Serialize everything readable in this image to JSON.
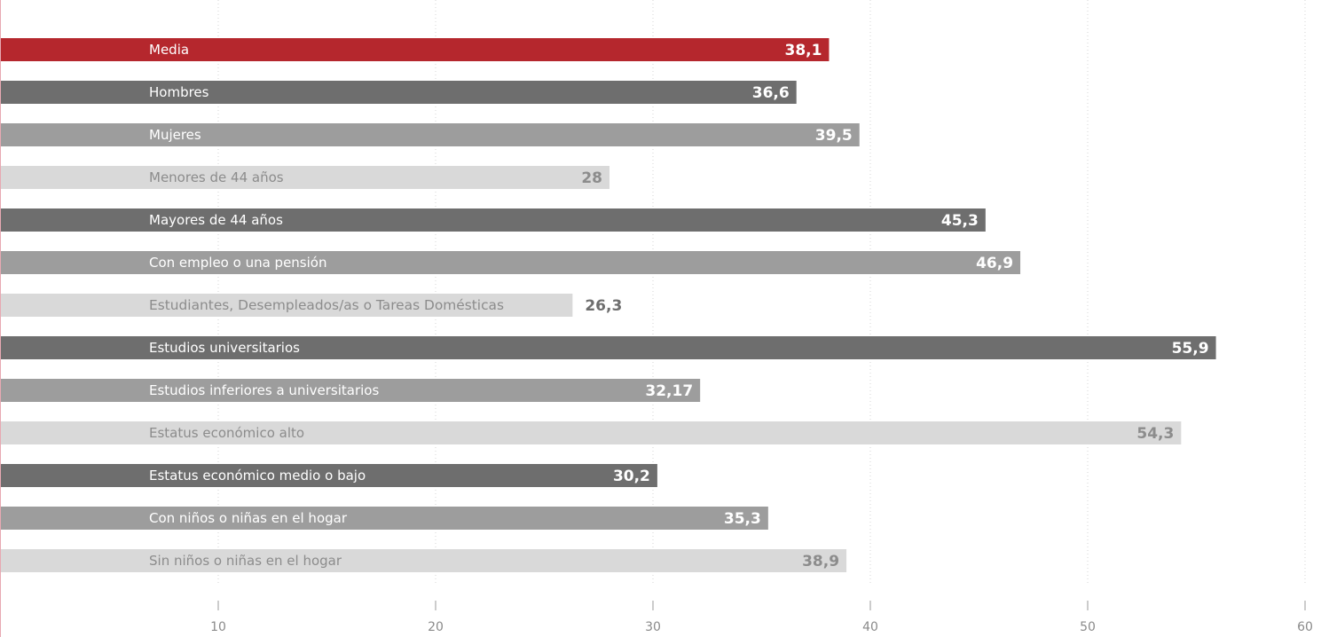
{
  "chart_data": {
    "type": "bar",
    "orientation": "horizontal",
    "categories": [
      "Media",
      "Hombres",
      "Mujeres",
      "Menores de 44 años",
      "Mayores de 44 años",
      "Con empleo o una pensión",
      "Estudiantes, Desempleados/as o Tareas Domésticas",
      "Estudios universitarios",
      "Estudios inferiores a universitarios",
      "Estatus económico alto",
      "Estatus económico medio o bajo",
      "Con niños o niñas en el hogar",
      "Sin niños o niñas en el hogar"
    ],
    "values": [
      38.1,
      36.6,
      39.5,
      28,
      45.3,
      46.9,
      26.3,
      55.9,
      32.17,
      54.3,
      30.2,
      35.3,
      38.9
    ],
    "value_labels": [
      "38,1",
      "36,6",
      "39,5",
      "28",
      "45,3",
      "46,9",
      "26,3",
      "55,9",
      "32,17",
      "54,3",
      "30,2",
      "35,3",
      "38,9"
    ],
    "bar_colors": [
      "#b5272d",
      "#6e6e6e",
      "#9d9d9d",
      "#d9d9d9",
      "#6e6e6e",
      "#9d9d9d",
      "#d9d9d9",
      "#6e6e6e",
      "#9d9d9d",
      "#d9d9d9",
      "#6e6e6e",
      "#9d9d9d",
      "#d9d9d9"
    ],
    "label_colors": [
      "#ffffff",
      "#ffffff",
      "#ffffff",
      "#8c8c8c",
      "#ffffff",
      "#ffffff",
      "#8c8c8c",
      "#ffffff",
      "#ffffff",
      "#8c8c8c",
      "#ffffff",
      "#ffffff",
      "#8c8c8c"
    ],
    "value_label_colors": [
      "#ffffff",
      "#ffffff",
      "#ffffff",
      "#8c8c8c",
      "#ffffff",
      "#ffffff",
      "#6e6e6e",
      "#ffffff",
      "#ffffff",
      "#8c8c8c",
      "#ffffff",
      "#ffffff",
      "#8c8c8c"
    ],
    "xlim": [
      0,
      60
    ],
    "xticks": [
      10,
      20,
      30,
      40,
      50,
      60
    ],
    "xtick_labels": [
      "10",
      "20",
      "30",
      "40",
      "50",
      "60"
    ],
    "grid": "vertical dotted",
    "title": "",
    "xlabel": "",
    "ylabel": ""
  }
}
